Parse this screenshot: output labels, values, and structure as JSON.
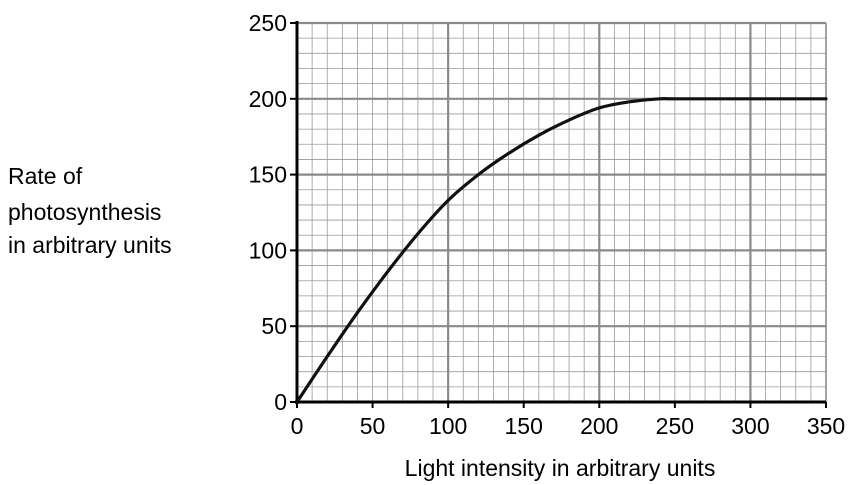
{
  "chart_data": {
    "type": "line",
    "title": "",
    "xlabel": "Light intensity in arbitrary units",
    "ylabel_lines": [
      "Rate of",
      "photosynthesis",
      "in arbitrary units"
    ],
    "xlim": [
      0,
      350
    ],
    "ylim": [
      0,
      250
    ],
    "x_ticks": [
      0,
      50,
      100,
      150,
      200,
      250,
      300,
      350
    ],
    "y_ticks": [
      0,
      50,
      100,
      150,
      200,
      250
    ],
    "grid": true,
    "grid_minor_step": {
      "x": 10,
      "y": 10
    },
    "grid_major_step": {
      "x": 100,
      "y": 50
    },
    "series": [
      {
        "color": "#111111",
        "x": [
          0,
          20,
          40,
          60,
          80,
          100,
          120,
          140,
          160,
          180,
          200,
          220,
          240,
          250,
          300,
          350
        ],
        "y": [
          0,
          30,
          59,
          86,
          111,
          133,
          150,
          164,
          176,
          186,
          194,
          198,
          200,
          200,
          200,
          200
        ]
      }
    ]
  }
}
